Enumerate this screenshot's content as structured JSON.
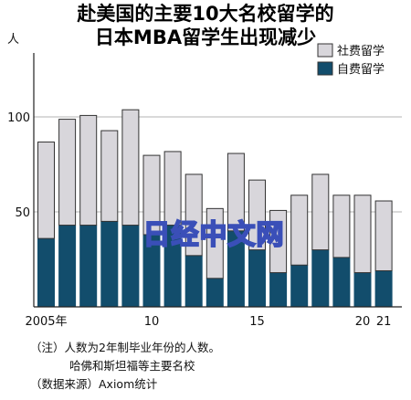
{
  "title_line1": "赴美国的主要10大名校留学的",
  "title_line2": "日本MBA留学生出现减少",
  "chart_data": {
    "type": "bar",
    "stacked": true,
    "unit_label": "人",
    "x": [
      2005,
      2006,
      2007,
      2008,
      2009,
      2010,
      2011,
      2012,
      2013,
      2014,
      2015,
      2016,
      2017,
      2018,
      2019,
      2020,
      2021
    ],
    "x_tick_labels": [
      {
        "x": 2005,
        "label": "2005年"
      },
      {
        "x": 2010,
        "label": "10"
      },
      {
        "x": 2015,
        "label": "15"
      },
      {
        "x": 2020,
        "label": "20"
      },
      {
        "x": 2021,
        "label": "21"
      }
    ],
    "yticks": [
      50,
      100
    ],
    "ylim": [
      0,
      130
    ],
    "series": [
      {
        "name": "自费留学",
        "color": "#124d6c",
        "values": [
          36,
          43,
          43,
          45,
          43,
          38,
          43,
          27,
          15,
          40,
          30,
          18,
          22,
          30,
          26,
          18,
          19
        ]
      },
      {
        "name": "社费留学",
        "color": "#d8d6db",
        "values": [
          51,
          56,
          58,
          48,
          61,
          42,
          39,
          43,
          37,
          41,
          37,
          33,
          37,
          40,
          33,
          41,
          37
        ]
      }
    ],
    "legend_position": "top-right"
  },
  "notes": [
    "（注）人数为2年制毕业年份的人数。",
    "哈佛和斯坦福等主要名校",
    "（数据来源）Axiom统计"
  ],
  "watermark": "日经中文网"
}
